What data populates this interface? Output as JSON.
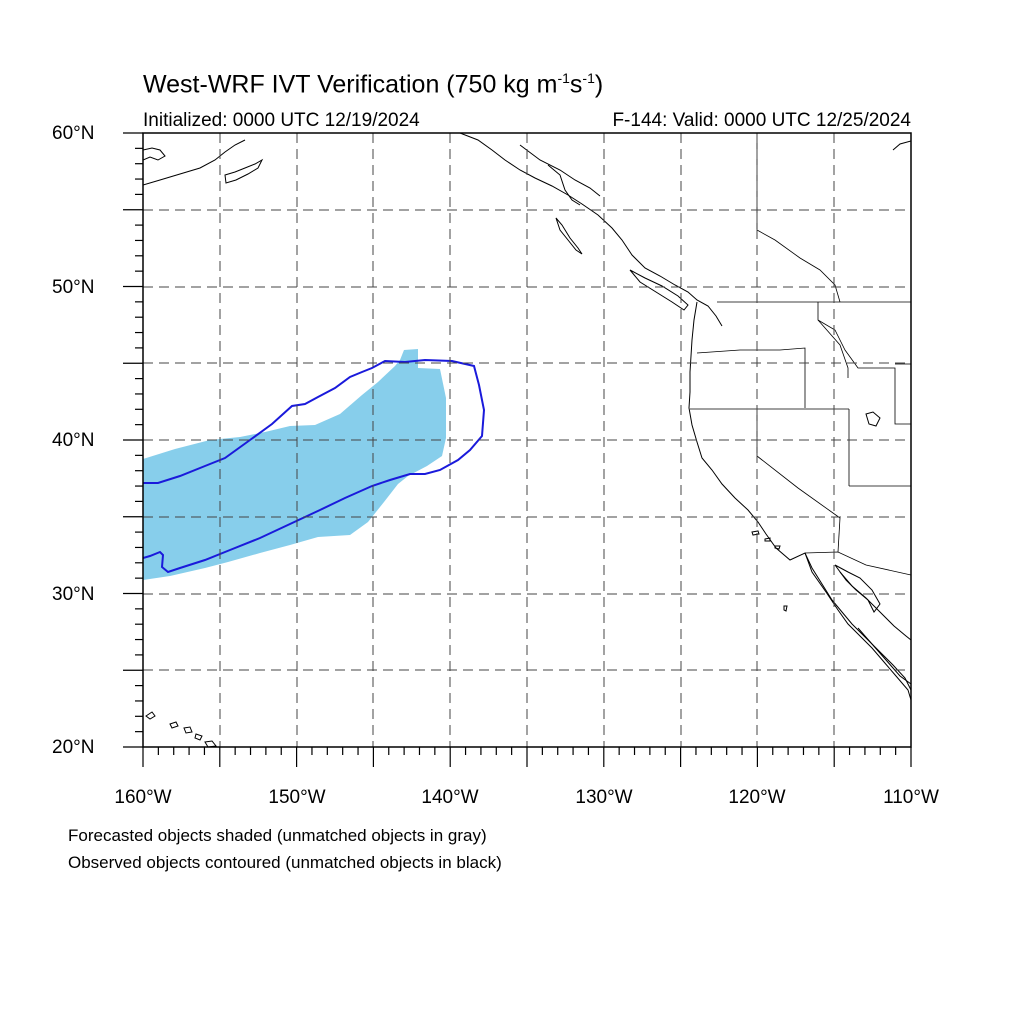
{
  "title": {
    "main": "West-WRF IVT Verification (750 kg m",
    "sup1": "-1",
    "mid": "s",
    "sup2": "-1",
    "end": ")"
  },
  "initialized": "Initialized: 0000 UTC 12/19/2024",
  "valid": "F-144: Valid: 0000 UTC 12/25/2024",
  "lat_labels": [
    "60°N",
    "50°N",
    "40°N",
    "30°N",
    "20°N"
  ],
  "lon_labels": [
    "160°W",
    "150°W",
    "140°W",
    "130°W",
    "120°W",
    "110°W"
  ],
  "captions": [
    "Forecasted objects shaded (unmatched objects in gray)",
    "Observed objects contoured (unmatched objects in black)"
  ],
  "map": {
    "extent": {
      "lon_min": -160,
      "lon_max": -110,
      "lat_min": 20,
      "lat_max": 60
    },
    "grid_spacing_deg": 5,
    "grid_style": "dashed",
    "colors": {
      "forecast_fill": "#87ceeb",
      "observed_contour": "#1a1adb",
      "coastline": "#000000",
      "grid": "#444444"
    },
    "objects": {
      "forecast": [
        {
          "name": "forecast-object",
          "matched": true
        }
      ],
      "observed": [
        {
          "name": "observed-object",
          "matched": true
        }
      ]
    }
  }
}
